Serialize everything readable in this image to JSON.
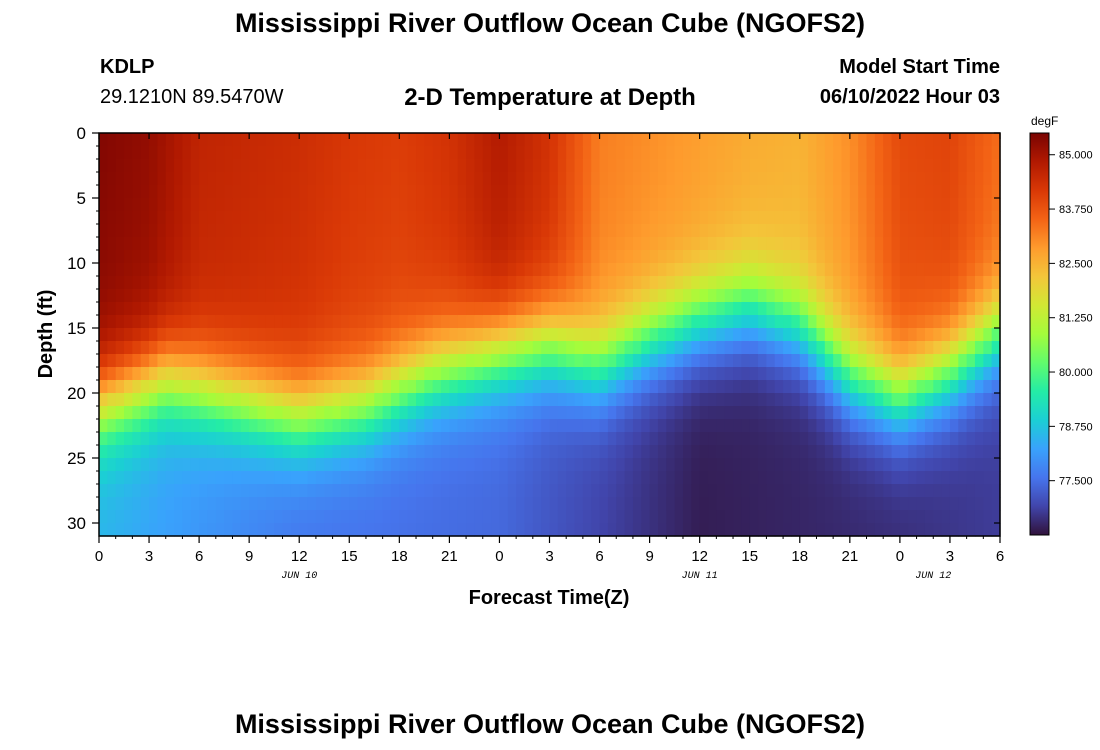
{
  "header": {
    "title": "Mississippi River Outflow Ocean Cube (NGOFS2)",
    "station": "KDLP",
    "coords": "29.1210N  89.5470W",
    "subtitle": "2-D Temperature at Depth",
    "model_start_label": "Model Start Time",
    "model_start_value": "06/10/2022 Hour 03"
  },
  "footer": {
    "title": "Mississippi River Outflow Ocean Cube (NGOFS2)"
  },
  "chart_data": {
    "type": "heatmap",
    "xlabel": "Forecast Time(Z)",
    "ylabel": "Depth (ft)",
    "x_ticks": [
      "0",
      "3",
      "6",
      "9",
      "12",
      "15",
      "18",
      "21",
      "0",
      "3",
      "6",
      "9",
      "12",
      "15",
      "18",
      "21",
      "0",
      "3",
      "6"
    ],
    "x_range_hours": [
      0,
      54
    ],
    "y_ticks": [
      "0",
      "5",
      "10",
      "15",
      "20",
      "25",
      "30"
    ],
    "y_range_ft": [
      0,
      31
    ],
    "date_labels": [
      {
        "text": "JUN 10",
        "hour": 12
      },
      {
        "text": "JUN 11",
        "hour": 36
      },
      {
        "text": "JUN 12",
        "hour": 50
      }
    ],
    "colorbar": {
      "unit": "degF",
      "min": 76.25,
      "max": 85.5,
      "tick_labels": [
        "85.000",
        "83.750",
        "82.500",
        "81.250",
        "80.000",
        "78.750",
        "77.500"
      ],
      "tick_values": [
        85.0,
        83.75,
        82.5,
        81.25,
        80.0,
        78.75,
        77.5
      ],
      "colors": [
        "#30123b",
        "#4145ab",
        "#4675ed",
        "#39a2fc",
        "#1bcfd4",
        "#24eca6",
        "#61fc6c",
        "#a4fc3b",
        "#d1e834",
        "#f3c63a",
        "#fe9b2d",
        "#f36315",
        "#d93806",
        "#b11901",
        "#7a0402"
      ]
    },
    "thermocline_depth_ft": [
      {
        "hour": 0,
        "depth": 21
      },
      {
        "hour": 4,
        "depth": 19
      },
      {
        "hour": 8,
        "depth": 20.5
      },
      {
        "hour": 12,
        "depth": 22
      },
      {
        "hour": 16,
        "depth": 21
      },
      {
        "hour": 20,
        "depth": 18.5
      },
      {
        "hour": 24,
        "depth": 17
      },
      {
        "hour": 27,
        "depth": 16.5
      },
      {
        "hour": 30,
        "depth": 18
      },
      {
        "hour": 33,
        "depth": 16
      },
      {
        "hour": 36,
        "depth": 14.5
      },
      {
        "hour": 39,
        "depth": 13.5
      },
      {
        "hour": 42,
        "depth": 15
      },
      {
        "hour": 45,
        "depth": 19
      },
      {
        "hour": 48,
        "depth": 20.5
      },
      {
        "hour": 51,
        "depth": 18.5
      },
      {
        "hour": 54,
        "depth": 15.5
      }
    ],
    "surface_temp_degF": [
      {
        "hour": 0,
        "temp": 85.4
      },
      {
        "hour": 3,
        "temp": 85.2
      },
      {
        "hour": 6,
        "temp": 84.6
      },
      {
        "hour": 9,
        "temp": 84.5
      },
      {
        "hour": 12,
        "temp": 84.4
      },
      {
        "hour": 15,
        "temp": 84.2
      },
      {
        "hour": 18,
        "temp": 84.1
      },
      {
        "hour": 21,
        "temp": 84.3
      },
      {
        "hour": 24,
        "temp": 84.8
      },
      {
        "hour": 27,
        "temp": 84.3
      },
      {
        "hour": 30,
        "temp": 83.2
      },
      {
        "hour": 33,
        "temp": 83.0
      },
      {
        "hour": 36,
        "temp": 82.8
      },
      {
        "hour": 39,
        "temp": 82.6
      },
      {
        "hour": 42,
        "temp": 82.5
      },
      {
        "hour": 45,
        "temp": 83.0
      },
      {
        "hour": 48,
        "temp": 83.9
      },
      {
        "hour": 51,
        "temp": 84.0
      },
      {
        "hour": 54,
        "temp": 83.4
      }
    ],
    "bottom_temp_degF": [
      {
        "hour": 0,
        "temp": 78.5
      },
      {
        "hour": 12,
        "temp": 77.6
      },
      {
        "hour": 24,
        "temp": 77.4
      },
      {
        "hour": 36,
        "temp": 76.4
      },
      {
        "hour": 48,
        "temp": 76.6
      },
      {
        "hour": 54,
        "temp": 76.8
      }
    ]
  }
}
